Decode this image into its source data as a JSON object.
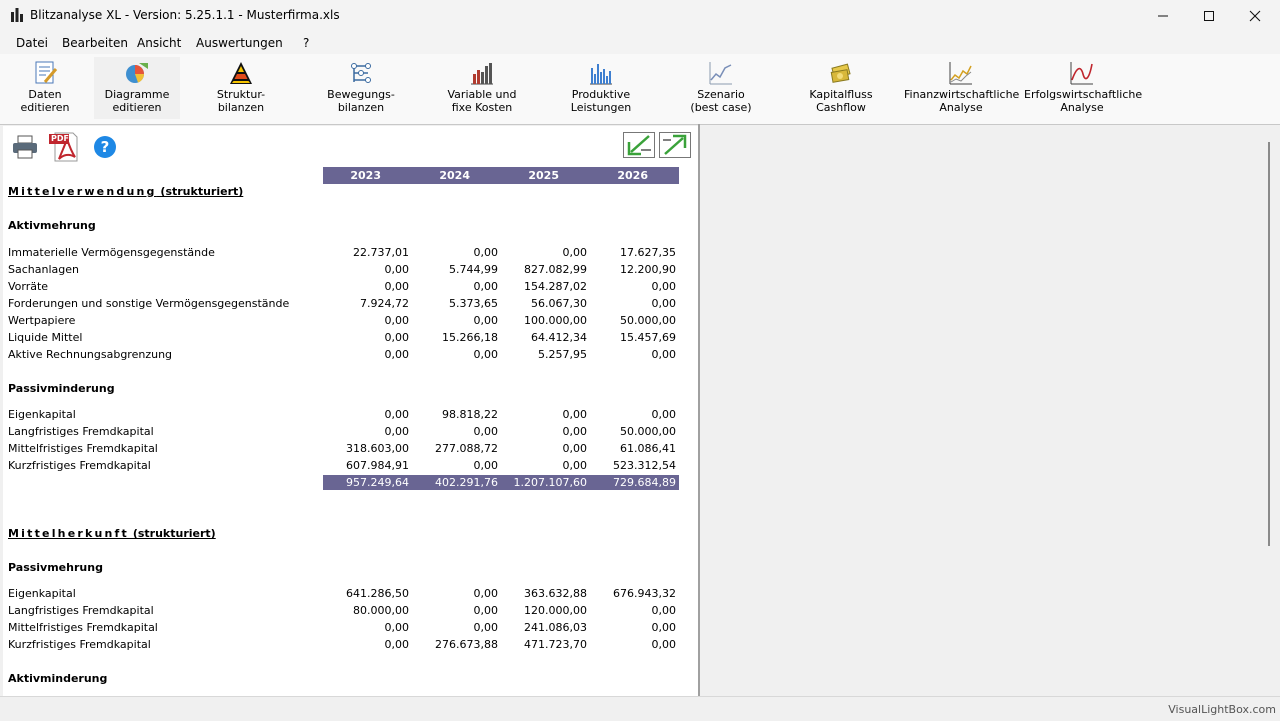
{
  "window": {
    "title": "Blitzanalyse XL - Version: 5.25.1.1 - Musterfirma.xls",
    "minimize_icon": "minimize-icon",
    "maximize_icon": "maximize-icon",
    "close_icon": "close-icon"
  },
  "menu": [
    "Datei",
    "Bearbeiten",
    "Ansicht",
    "Auswertungen",
    "?"
  ],
  "toolbar": [
    {
      "line1": "Daten",
      "line2": "editieren",
      "icon": "edit-data-icon"
    },
    {
      "line1": "Diagramme",
      "line2": "editieren",
      "icon": "diagram-icon"
    },
    {
      "line1": "Struktur-",
      "line2": "bilanzen",
      "icon": "pyramid-icon"
    },
    {
      "line1": "Bewegungs-",
      "line2": "bilanzen",
      "icon": "flow-icon"
    },
    {
      "line1": "Variable und",
      "line2": "fixe Kosten",
      "icon": "bar-chart-icon"
    },
    {
      "line1": "Produktive",
      "line2": "Leistungen",
      "icon": "column-chart-icon"
    },
    {
      "line1": "Szenario",
      "line2": "(best case)",
      "icon": "line-chart-icon"
    },
    {
      "line1": "Kapitalfluss",
      "line2": "Cashflow",
      "icon": "money-icon"
    },
    {
      "line1": "Finanzwirtschaftliche",
      "line2": "Analyse",
      "icon": "finance-chart-icon"
    },
    {
      "line1": "Erfolgswirtschaftliche",
      "line2": "Analyse",
      "icon": "success-chart-icon"
    }
  ],
  "panel_tools": {
    "print_icon": "printer-icon",
    "pdf_icon": "pdf-icon",
    "pdf_label": "PDF",
    "help_icon": "help-icon",
    "help_label": "?",
    "import_icon": "arrow-in-icon",
    "export_icon": "arrow-out-icon"
  },
  "years": [
    "2023",
    "2024",
    "2025",
    "2026"
  ],
  "mittelverwendung": {
    "title_spaced": "Mittelverwendung",
    "title_suffix": " (strukturiert)",
    "group1": "Aktivmehrung",
    "rows1": [
      {
        "label": "Immaterielle Vermögensgegenstände",
        "values": [
          "22.737,01",
          "0,00",
          "0,00",
          "17.627,35"
        ]
      },
      {
        "label": "Sachanlagen",
        "values": [
          "0,00",
          "5.744,99",
          "827.082,99",
          "12.200,90"
        ]
      },
      {
        "label": "Vorräte",
        "values": [
          "0,00",
          "0,00",
          "154.287,02",
          "0,00"
        ]
      },
      {
        "label": "Forderungen und sonstige Vermögensgegenstände",
        "values": [
          "7.924,72",
          "5.373,65",
          "56.067,30",
          "0,00"
        ]
      },
      {
        "label": "Wertpapiere",
        "values": [
          "0,00",
          "0,00",
          "100.000,00",
          "50.000,00"
        ]
      },
      {
        "label": "Liquide Mittel",
        "values": [
          "0,00",
          "15.266,18",
          "64.412,34",
          "15.457,69"
        ]
      },
      {
        "label": "Aktive Rechnungsabgrenzung",
        "values": [
          "0,00",
          "0,00",
          "5.257,95",
          "0,00"
        ]
      }
    ],
    "group2": "Passivminderung",
    "rows2": [
      {
        "label": "Eigenkapital",
        "values": [
          "0,00",
          "98.818,22",
          "0,00",
          "0,00"
        ]
      },
      {
        "label": "Langfristiges Fremdkapital",
        "values": [
          "0,00",
          "0,00",
          "0,00",
          "50.000,00"
        ]
      },
      {
        "label": "Mittelfristiges Fremdkapital",
        "values": [
          "318.603,00",
          "277.088,72",
          "0,00",
          "61.086,41"
        ]
      },
      {
        "label": "Kurzfristiges Fremdkapital",
        "values": [
          "607.984,91",
          "0,00",
          "0,00",
          "523.312,54"
        ]
      }
    ],
    "totals": [
      "957.249,64",
      "402.291,76",
      "1.207.107,60",
      "729.684,89"
    ]
  },
  "mittelherkunft": {
    "title_spaced": "Mittelherkunft",
    "title_suffix": " (strukturiert)",
    "group1": "Passivmehrung",
    "rows1": [
      {
        "label": "Eigenkapital",
        "values": [
          "641.286,50",
          "0,00",
          "363.632,88",
          "676.943,32"
        ]
      },
      {
        "label": "Langfristiges Fremdkapital",
        "values": [
          "80.000,00",
          "0,00",
          "120.000,00",
          "0,00"
        ]
      },
      {
        "label": "Mittelfristiges Fremdkapital",
        "values": [
          "0,00",
          "0,00",
          "241.086,03",
          "0,00"
        ]
      },
      {
        "label": "Kurzfristiges Fremdkapital",
        "values": [
          "0,00",
          "276.673,88",
          "471.723,70",
          "0,00"
        ]
      }
    ],
    "group2": "Aktivminderung"
  },
  "status": {
    "brand": "VisualLightBox.com"
  },
  "colors": {
    "header_band": "#696593"
  }
}
